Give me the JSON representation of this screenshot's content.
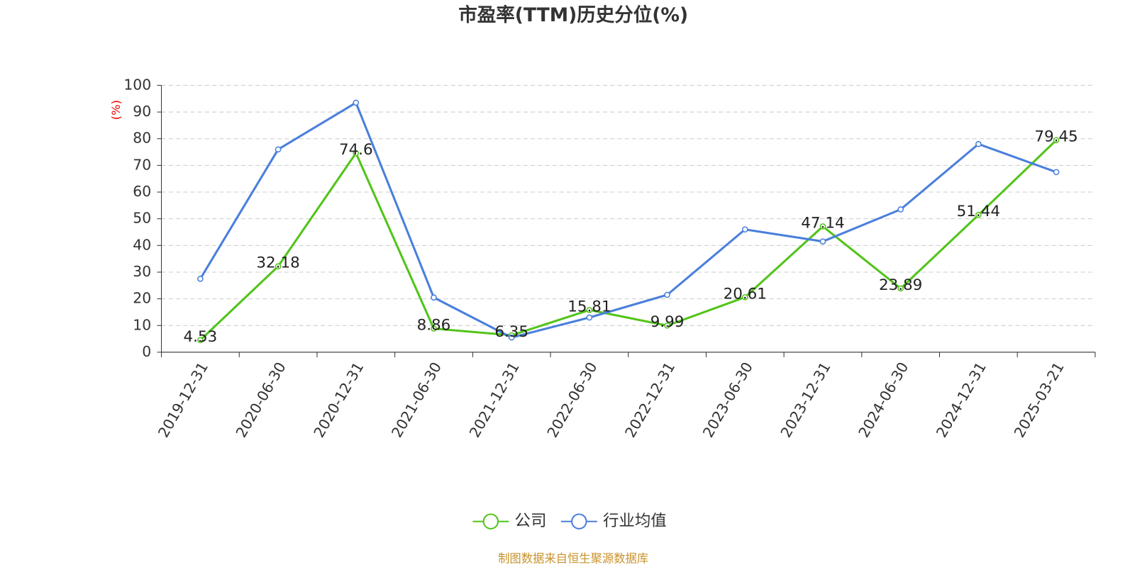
{
  "chart_data": {
    "type": "line",
    "title": "市盈率(TTM)历史分位(%)",
    "y_label": "(%)",
    "source": "制图数据来自恒生聚源数据库",
    "categories": [
      "2019-12-31",
      "2020-06-30",
      "2020-12-31",
      "2021-06-30",
      "2021-12-31",
      "2022-06-30",
      "2022-12-31",
      "2023-06-30",
      "2023-12-31",
      "2024-06-30",
      "2024-12-31",
      "2025-03-21"
    ],
    "series": [
      {
        "name": "公司",
        "color": "#52c41a",
        "values": [
          4.53,
          32.18,
          74.6,
          8.86,
          6.35,
          15.81,
          9.99,
          20.61,
          47.14,
          23.89,
          51.44,
          79.45
        ],
        "show_labels": true
      },
      {
        "name": "行业均值",
        "color": "#4a7fdc",
        "values": [
          27.5,
          76,
          93.5,
          20.5,
          5.5,
          13,
          21.5,
          46,
          41.5,
          53.5,
          78,
          67.5
        ],
        "show_labels": false
      }
    ],
    "ylim": [
      0,
      100
    ],
    "yticks": [
      0,
      10,
      20,
      30,
      40,
      50,
      60,
      70,
      80,
      90,
      100
    ],
    "grid": true,
    "legend": "bottom"
  }
}
